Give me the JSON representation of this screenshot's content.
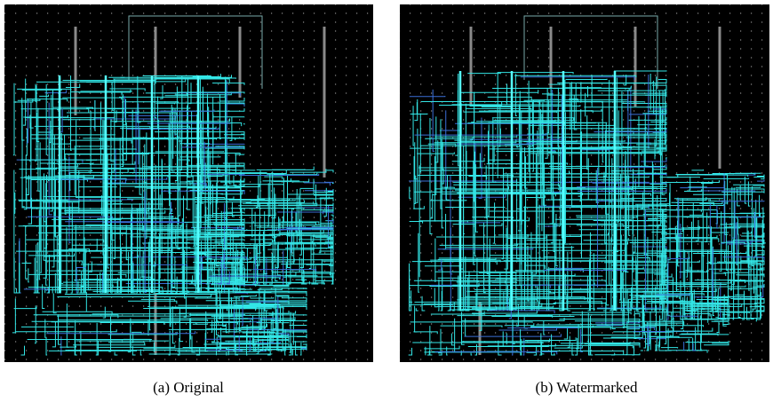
{
  "figure": {
    "panels": [
      {
        "caption": "(a) Original"
      },
      {
        "caption": "(b) Watermarked"
      }
    ]
  }
}
